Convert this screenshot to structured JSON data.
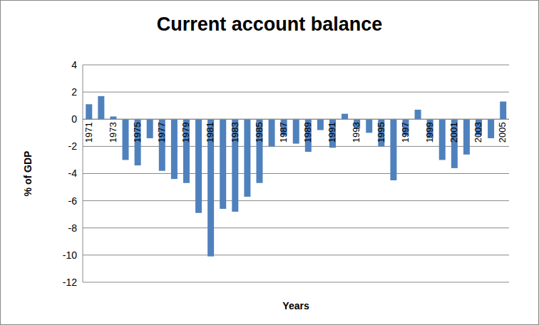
{
  "chart_data": {
    "type": "bar",
    "title": "Current account balance",
    "x_label": "Years",
    "y_label": "% of GDP",
    "categories": [
      "1971",
      null,
      "1973",
      null,
      "1975",
      null,
      "1977",
      null,
      "1979",
      null,
      "1981",
      null,
      "1983",
      null,
      "1985",
      null,
      "1987",
      null,
      "1989",
      null,
      "1991",
      null,
      "1993",
      null,
      "1995",
      null,
      "1997",
      null,
      "1999",
      null,
      "2001",
      null,
      "2003",
      null,
      "2005"
    ],
    "values": [
      1.1,
      1.7,
      0.2,
      -3.0,
      -3.4,
      -1.4,
      -3.8,
      -4.4,
      -4.7,
      -6.9,
      -10.1,
      -6.6,
      -6.8,
      -5.7,
      -4.7,
      -2.0,
      -1.2,
      -1.8,
      -2.4,
      -0.8,
      -2.1,
      0.4,
      -0.7,
      -1.0,
      -2.0,
      -4.5,
      -1.2,
      0.7,
      -1.4,
      -3.0,
      -3.6,
      -2.6,
      -1.2,
      -1.4,
      1.3
    ],
    "color": "#4f81bd",
    "ylim": [
      -12,
      4
    ],
    "yticks": [
      -12,
      -10,
      -8,
      -6,
      -4,
      -2,
      0,
      2,
      4
    ],
    "grid": true
  }
}
